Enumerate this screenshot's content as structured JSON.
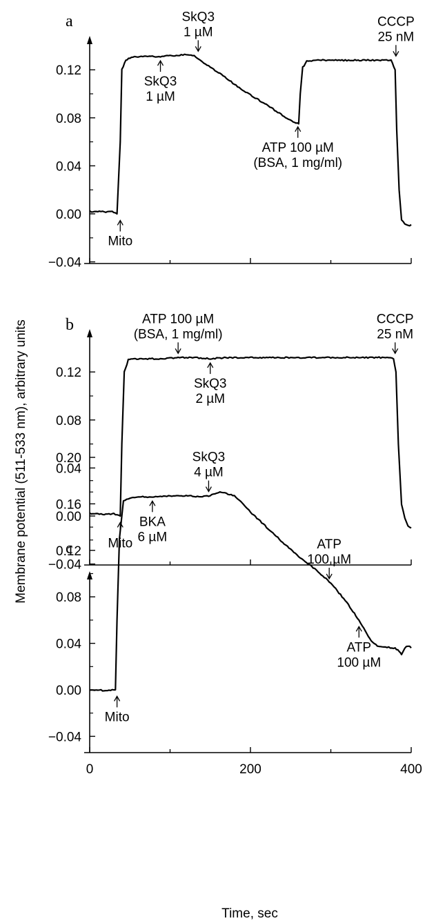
{
  "figure": {
    "ylabel": "Membrane potential (511-533 nm), arbitrary units",
    "xlabel": "Time, sec"
  },
  "chart_data": [
    {
      "panel": "a",
      "type": "line",
      "xlim": [
        0,
        400
      ],
      "ylim": [
        -0.04,
        0.15
      ],
      "yticks": [
        "0.12",
        "0.08",
        "0.04",
        "0.00",
        "−0.04"
      ],
      "ytick_values": [
        0.12,
        0.08,
        0.04,
        0.0,
        -0.04
      ],
      "series": [
        {
          "x": [
            0,
            10,
            20,
            28,
            34,
            38,
            40,
            45,
            50,
            60,
            80,
            90,
            100,
            110,
            120,
            130,
            140,
            150,
            160,
            180,
            200,
            220,
            240,
            255,
            260,
            262,
            265,
            270,
            280,
            300,
            320,
            340,
            360,
            375,
            380,
            382,
            385,
            388,
            392,
            396,
            400
          ],
          "y": [
            0.002,
            0.002,
            0.0015,
            0.002,
            0.0,
            0.06,
            0.12,
            0.128,
            0.13,
            0.131,
            0.131,
            0.131,
            0.132,
            0.132,
            0.133,
            0.132,
            0.127,
            0.122,
            0.118,
            0.108,
            0.099,
            0.091,
            0.082,
            0.076,
            0.075,
            0.1,
            0.122,
            0.127,
            0.128,
            0.128,
            0.128,
            0.128,
            0.128,
            0.128,
            0.12,
            0.07,
            0.02,
            -0.005,
            -0.008,
            -0.01,
            -0.009
          ]
        }
      ],
      "annotations": [
        {
          "lines": [
            "Mito"
          ],
          "x": 38,
          "y": -0.002,
          "dir": "up"
        },
        {
          "lines": [
            "SkQ3",
            "1 µM"
          ],
          "x": 88,
          "y": 0.131,
          "dir": "up"
        },
        {
          "lines": [
            "SkQ3",
            "1 µM"
          ],
          "x": 135,
          "y": 0.132,
          "dir": "down"
        },
        {
          "lines": [
            "ATP 100 µM",
            "(BSA, 1 mg/ml)"
          ],
          "x": 259,
          "y": 0.076,
          "dir": "up"
        },
        {
          "lines": [
            "CCCP",
            "25 nM"
          ],
          "x": 381,
          "y": 0.128,
          "dir": "down"
        }
      ]
    },
    {
      "panel": "b",
      "type": "line",
      "xlim": [
        0,
        400
      ],
      "ylim": [
        -0.04,
        0.15
      ],
      "yticks": [
        "0.12",
        "0.08",
        "0.04",
        "0.00",
        "−0.04"
      ],
      "ytick_values": [
        0.12,
        0.08,
        0.04,
        0.0,
        -0.04
      ],
      "series": [
        {
          "x": [
            0,
            10,
            20,
            30,
            38,
            40,
            43,
            48,
            55,
            70,
            90,
            110,
            130,
            150,
            170,
            200,
            230,
            260,
            290,
            320,
            350,
            370,
            378,
            381,
            384,
            388,
            392,
            396,
            400
          ],
          "y": [
            0.002,
            0.002,
            0.0015,
            0.002,
            0.0,
            0.06,
            0.12,
            0.13,
            0.131,
            0.131,
            0.131,
            0.132,
            0.132,
            0.131,
            0.132,
            0.132,
            0.132,
            0.132,
            0.132,
            0.132,
            0.132,
            0.132,
            0.131,
            0.12,
            0.06,
            0.01,
            -0.002,
            -0.008,
            -0.01
          ]
        }
      ],
      "annotations": [
        {
          "lines": [
            "Mito"
          ],
          "x": 38,
          "y": -0.002,
          "dir": "up"
        },
        {
          "lines": [
            "ATP 100 µM",
            "(BSA, 1 mg/ml)"
          ],
          "x": 110,
          "y": 0.132,
          "dir": "down"
        },
        {
          "lines": [
            "SkQ3",
            "2 µM"
          ],
          "x": 150,
          "y": 0.131,
          "dir": "up"
        },
        {
          "lines": [
            "CCCP",
            "25 nM"
          ],
          "x": 380,
          "y": 0.132,
          "dir": "down"
        }
      ]
    },
    {
      "panel": "c",
      "type": "line",
      "xlim": [
        0,
        400
      ],
      "ylim": [
        -0.05,
        0.205
      ],
      "xticks": [
        "0",
        "200",
        "400"
      ],
      "xtick_values": [
        0,
        200,
        400
      ],
      "yticks": [
        "0.20",
        "0.16",
        "0.12",
        "0.08",
        "0.04",
        "0.00",
        "−0.04"
      ],
      "ytick_values": [
        0.2,
        0.16,
        0.12,
        0.08,
        0.04,
        0.0,
        -0.04
      ],
      "series": [
        {
          "x": [
            0,
            10,
            20,
            30,
            32,
            34,
            37,
            42,
            50,
            60,
            80,
            100,
            120,
            140,
            150,
            160,
            170,
            180,
            190,
            200,
            220,
            240,
            260,
            280,
            300,
            320,
            335,
            345,
            350,
            360,
            380,
            385,
            388,
            392,
            396,
            400
          ],
          "y": [
            0.0,
            0.0,
            -0.001,
            0.0,
            0.0,
            0.06,
            0.13,
            0.163,
            0.165,
            0.166,
            0.166,
            0.167,
            0.167,
            0.166,
            0.167,
            0.17,
            0.169,
            0.167,
            0.161,
            0.153,
            0.14,
            0.127,
            0.115,
            0.104,
            0.092,
            0.075,
            0.06,
            0.048,
            0.042,
            0.037,
            0.036,
            0.033,
            0.03,
            0.036,
            0.038,
            0.036
          ]
        }
      ],
      "annotations": [
        {
          "lines": [
            "Mito"
          ],
          "x": 34,
          "y": -0.002,
          "dir": "up"
        },
        {
          "lines": [
            "BKA",
            "6 µM"
          ],
          "x": 78,
          "y": 0.166,
          "dir": "up"
        },
        {
          "lines": [
            "SkQ3",
            "4 µM"
          ],
          "x": 148,
          "y": 0.167,
          "dir": "down"
        },
        {
          "lines": [
            "ATP",
            "100 µM"
          ],
          "x": 298,
          "y": 0.092,
          "dir": "down"
        },
        {
          "lines": [
            "ATP",
            "100 µM"
          ],
          "x": 335,
          "y": 0.058,
          "dir": "up"
        }
      ]
    }
  ]
}
